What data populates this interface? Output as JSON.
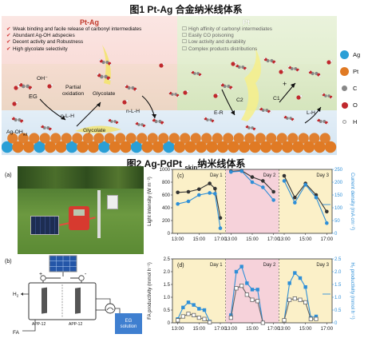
{
  "figure1": {
    "title": "图1 Pt-Ag 合金纳米线体系",
    "pt_ag": {
      "label": "Pt-Ag",
      "bullets": [
        "Weak binding and  facile release of carbonyl intermediates",
        "Abundant Ag-OH adspecies",
        "Decent activity and Robustness",
        "High glycolate selectivity"
      ]
    },
    "pt": {
      "label": "Pt",
      "bullets": [
        "High affinity of carbonyl intermediates",
        "Easily CO poisoning",
        "Low activity and durability",
        "Complex products distributions"
      ]
    },
    "annotations": {
      "oh": "OH⁻",
      "eg": "EG",
      "partial_oxidation": "Partial\noxidation",
      "glycolate_top": "Glycolate",
      "glycolate_bottom": "Glycolate",
      "nlh_left": "n-L-H",
      "nlh_right": "n-L-H",
      "ag_oh": "Ag-OH",
      "ag_oh_sub": "ad",
      "er": "E-R",
      "c2": "C2",
      "c1": "C1",
      "lh": "L-H",
      "plus": "+"
    },
    "legend": [
      {
        "symbol": "Ag",
        "color": "#2a9fd6"
      },
      {
        "symbol": "Pt",
        "color": "#e07a24"
      },
      {
        "symbol": "C",
        "color": "#888888"
      },
      {
        "symbol": "O",
        "color": "#c0282d"
      },
      {
        "symbol": "H",
        "color": "#f4f4f4"
      }
    ]
  },
  "figure2": {
    "title_main": "图2 Ag-PdPt ",
    "title_sub": "skin",
    "title_end": "纳米线体系",
    "panel_a_label": "(a)",
    "panel_b_label": "(b)",
    "schematic": {
      "plus": "+",
      "minus": "-",
      "h2": "H",
      "h2_sub": "2",
      "fa": "FA",
      "cell_label": "APP-12",
      "eg_solution": "EG\nsolution"
    },
    "days": [
      "Day 1",
      "Day 2",
      "Day 3"
    ],
    "day_colors": [
      "#fbf0c8",
      "#f6d2da",
      "#fbf0c8"
    ]
  },
  "chart_data": [
    {
      "type": "line",
      "panel": "(c)",
      "xlabel": "",
      "x_ticks": [
        "13:00",
        "15:00",
        "17:00",
        "13:00",
        "15:00",
        "17:00",
        "13:00",
        "15:00",
        "17:00"
      ],
      "y_left_label": "Light intensity (W m⁻²)",
      "y_left_lim": [
        0,
        1000
      ],
      "y_left_ticks": [
        "0",
        "200",
        "400",
        "600",
        "800",
        "1000"
      ],
      "y_right_label": "Current density (mA cm⁻²)",
      "y_right_lim": [
        0,
        250
      ],
      "y_right_ticks": [
        "0",
        "50",
        "100",
        "150",
        "200",
        "250"
      ],
      "series": [
        {
          "axis": "left",
          "color": "#333333",
          "marker": "circle",
          "segments": [
            {
              "day": 1,
              "x": [
                13,
                14,
                15,
                16,
                16.5,
                17
              ],
              "y": [
                640,
                650,
                690,
                780,
                700,
                240
              ]
            },
            {
              "day": 2,
              "x": [
                13,
                14,
                15,
                16,
                17
              ],
              "y": [
                970,
                980,
                880,
                820,
                650
              ]
            },
            {
              "day": 3,
              "x": [
                13,
                14,
                15,
                16,
                17
              ],
              "y": [
                900,
                560,
                780,
                600,
                340
              ]
            }
          ]
        },
        {
          "axis": "right",
          "color": "#2e8fd8",
          "marker": "circle",
          "segments": [
            {
              "day": 1,
              "x": [
                13,
                14,
                15,
                16,
                16.5,
                17
              ],
              "y": [
                115,
                125,
                150,
                158,
                155,
                20
              ]
            },
            {
              "day": 2,
              "x": [
                13,
                14,
                15,
                16,
                17
              ],
              "y": [
                240,
                243,
                200,
                180,
                130
              ]
            },
            {
              "day": 3,
              "x": [
                13,
                14,
                15,
                16,
                17
              ],
              "y": [
                205,
                120,
                190,
                140,
                40
              ]
            }
          ]
        }
      ]
    },
    {
      "type": "line",
      "panel": "(d)",
      "xlabel": "",
      "x_ticks": [
        "13:00",
        "15:00",
        "17:00",
        "13:00",
        "15:00",
        "17:00",
        "13:00",
        "15:00",
        "17:00"
      ],
      "y_left_label": "FA productivity (mmol h⁻¹)",
      "y_left_lim": [
        0,
        2.5
      ],
      "y_left_ticks": [
        "0",
        "0.5",
        "1.0",
        "1.5",
        "2.0",
        "2.5"
      ],
      "y_right_label": "H₂ productivity (mmol h⁻¹)",
      "y_right_lim": [
        0,
        2.5
      ],
      "y_right_ticks": [
        "0",
        "0.5",
        "1.0",
        "1.5",
        "2.0",
        "2.5"
      ],
      "series": [
        {
          "axis": "right",
          "color": "#2e8fd8",
          "marker": "square-filled",
          "segments": [
            {
              "day": 1,
              "x": [
                13,
                13.5,
                14,
                14.5,
                15,
                15.5,
                16
              ],
              "y": [
                0.15,
                0.6,
                0.8,
                0.7,
                0.55,
                0.5,
                0.05
              ]
            },
            {
              "day": 2,
              "x": [
                13,
                13.5,
                14,
                14.5,
                15,
                15.5,
                16
              ],
              "y": [
                0.3,
                2.0,
                2.2,
                1.55,
                1.3,
                1.3,
                0.0
              ]
            },
            {
              "day": 3,
              "x": [
                13,
                13.5,
                14,
                14.5,
                15,
                15.5,
                16
              ],
              "y": [
                0.1,
                1.55,
                1.95,
                1.75,
                1.4,
                0.2,
                0.25
              ]
            }
          ]
        },
        {
          "axis": "left",
          "color": "#666666",
          "marker": "square-open",
          "segments": [
            {
              "day": 1,
              "x": [
                13,
                13.5,
                14,
                14.5,
                15,
                15.5,
                16
              ],
              "y": [
                0.1,
                0.25,
                0.35,
                0.3,
                0.2,
                0.15,
                0.02
              ]
            },
            {
              "day": 2,
              "x": [
                13,
                13.5,
                14,
                14.5,
                15,
                15.5,
                16
              ],
              "y": [
                0.2,
                1.35,
                1.45,
                1.1,
                0.9,
                0.85,
                0.0
              ]
            },
            {
              "day": 3,
              "x": [
                13,
                13.5,
                14,
                14.5,
                15,
                15.5,
                16
              ],
              "y": [
                0.1,
                0.9,
                0.95,
                0.9,
                0.8,
                0.15,
                0.15
              ]
            }
          ]
        }
      ]
    }
  ]
}
